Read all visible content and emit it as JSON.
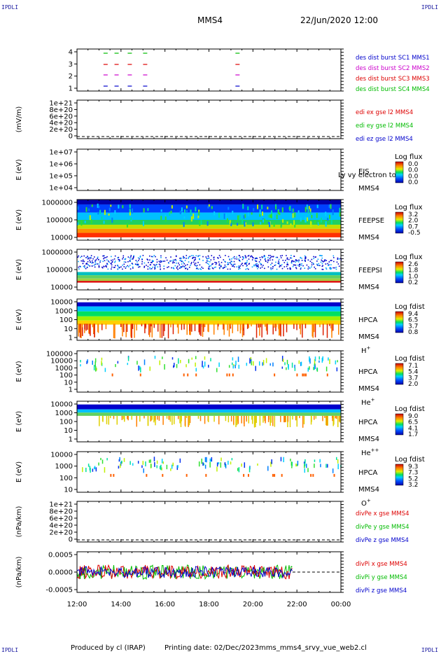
{
  "corner_label": "IPDLI",
  "header": {
    "title": "MMS4",
    "datetime": "22/Jun/2020 12:00"
  },
  "footer": {
    "produced_by": "Produced by cl (IRAP)",
    "printing_date": "Printing date: 02/Dec/2023",
    "file": "mms_mms4_srvy_vue_web2.cl"
  },
  "colors": {
    "red": "#dd0000",
    "green": "#00bb00",
    "blue": "#0000cc",
    "magenta": "#cc00cc",
    "black": "#000000"
  },
  "chart_data": {
    "type": "heatmap",
    "x_axis": {
      "ticks": [
        "12:00",
        "14:00",
        "16:00",
        "18:00",
        "20:00",
        "22:00",
        "00:00"
      ],
      "range_hours": [
        12,
        24
      ]
    },
    "panels": [
      {
        "id": "burst",
        "yticks": [
          "4",
          "3",
          "2",
          "1"
        ],
        "legend": [
          {
            "text": "des dist burst SC1 MMS1",
            "color": "#0000cc"
          },
          {
            "text": "des dist burst SC2 MMS2",
            "color": "#cc00cc"
          },
          {
            "text": "des dist burst SC3 MMS3",
            "color": "#dd0000"
          },
          {
            "text": "des dist burst SC4 MMS4",
            "color": "#00bb00"
          }
        ],
        "burst_times_hours": [
          13.3,
          13.8,
          14.4,
          15.1,
          19.3
        ]
      },
      {
        "id": "edi_e",
        "ylabel": "(mV/m)",
        "yticks": [
          "1e+21",
          "8e+20",
          "6e+20",
          "4e+20",
          "2e+20",
          "0"
        ],
        "legend": [
          {
            "text": "edi ex gse l2 MMS4",
            "color": "#dd0000"
          },
          {
            "text": "edi ey gse l2 MMS4",
            "color": "#00bb00"
          },
          {
            "text": "edi ez gse l2 MMS4",
            "color": "#0000cc"
          }
        ]
      },
      {
        "id": "eis",
        "ylabel": "E (eV)",
        "yticks": [
          "1e+07",
          "1e+06",
          "1e+05",
          "1e+04"
        ],
        "instrument": "EIS",
        "spacecraft": "MMS4",
        "note": "Ly vy electron to",
        "cbar_title": "Log flux",
        "cbar_ticks": [
          "0.0",
          "0.0",
          "0.0",
          "0.0"
        ]
      },
      {
        "id": "feepse",
        "ylabel": "E (eV)",
        "yticks": [
          "1000000",
          "100000",
          "10000"
        ],
        "instrument": "FEEPSE",
        "spacecraft": "MMS4",
        "cbar_title": "Log flux",
        "cbar_ticks": [
          "3.2",
          "2.0",
          "0.7",
          "-0.5"
        ]
      },
      {
        "id": "feepsi",
        "ylabel": "E (eV)",
        "yticks": [
          "1000000",
          "100000",
          "10000"
        ],
        "instrument": "FEEPSI",
        "spacecraft": "MMS4",
        "cbar_title": "Log flux",
        "cbar_ticks": [
          "2.6",
          "1.8",
          "1.0",
          "0.2"
        ]
      },
      {
        "id": "hpca_h",
        "ylabel": "E (eV)",
        "yticks": [
          "10000",
          "1000",
          "100",
          "10",
          "1"
        ],
        "instrument": "HPCA",
        "spacecraft": "MMS4",
        "species": "H",
        "charge": "+",
        "cbar_title": "Log fdist",
        "cbar_ticks": [
          "9.4",
          "6.5",
          "3.7",
          "0.8"
        ]
      },
      {
        "id": "hpca_he",
        "ylabel": "E (eV)",
        "yticks": [
          "100000",
          "10000",
          "1000",
          "100",
          "10",
          "1"
        ],
        "instrument": "HPCA",
        "spacecraft": "MMS4",
        "species": "He",
        "charge": "+",
        "cbar_title": "Log fdist",
        "cbar_ticks": [
          "7.1",
          "5.4",
          "3.7",
          "2.0"
        ]
      },
      {
        "id": "hpca_hepp",
        "ylabel": "E (eV)",
        "yticks": [
          "10000",
          "1000",
          "100",
          "10",
          "1"
        ],
        "instrument": "HPCA",
        "spacecraft": "MMS4",
        "species": "He",
        "charge": "++",
        "cbar_title": "Log fdist",
        "cbar_ticks": [
          "9.0",
          "6.5",
          "4.1",
          "1.7"
        ]
      },
      {
        "id": "hpca_o",
        "ylabel": "E (eV)",
        "yticks": [
          "10000",
          "1000",
          "100",
          "10"
        ],
        "instrument": "HPCA",
        "spacecraft": "MMS4",
        "species": "O",
        "charge": "+",
        "cbar_title": "Log fdist",
        "cbar_ticks": [
          "9.3",
          "7.3",
          "5.2",
          "3.2"
        ]
      },
      {
        "id": "divpe",
        "ylabel": "(nPa/km)",
        "yticks": [
          "1e+21",
          "8e+20",
          "6e+20",
          "4e+20",
          "2e+20",
          "0"
        ],
        "legend": [
          {
            "text": "divPe x gse MMS4",
            "color": "#dd0000"
          },
          {
            "text": "divPe y gse MMS4",
            "color": "#00bb00"
          },
          {
            "text": "divPe z gse MMS4",
            "color": "#0000cc"
          }
        ]
      },
      {
        "id": "divpi",
        "ylabel": "(nPa/km)",
        "yticks": [
          "0.0005",
          "0.0000",
          "-0.0005"
        ],
        "ylim": [
          -0.0008,
          0.0008
        ],
        "data_end_hours": 21.8,
        "legend": [
          {
            "text": "divPi x gse MMS4",
            "color": "#dd0000"
          },
          {
            "text": "divPi y gse MMS4",
            "color": "#00bb00"
          },
          {
            "text": "divPi z gse MMS4",
            "color": "#0000cc"
          }
        ]
      }
    ]
  }
}
